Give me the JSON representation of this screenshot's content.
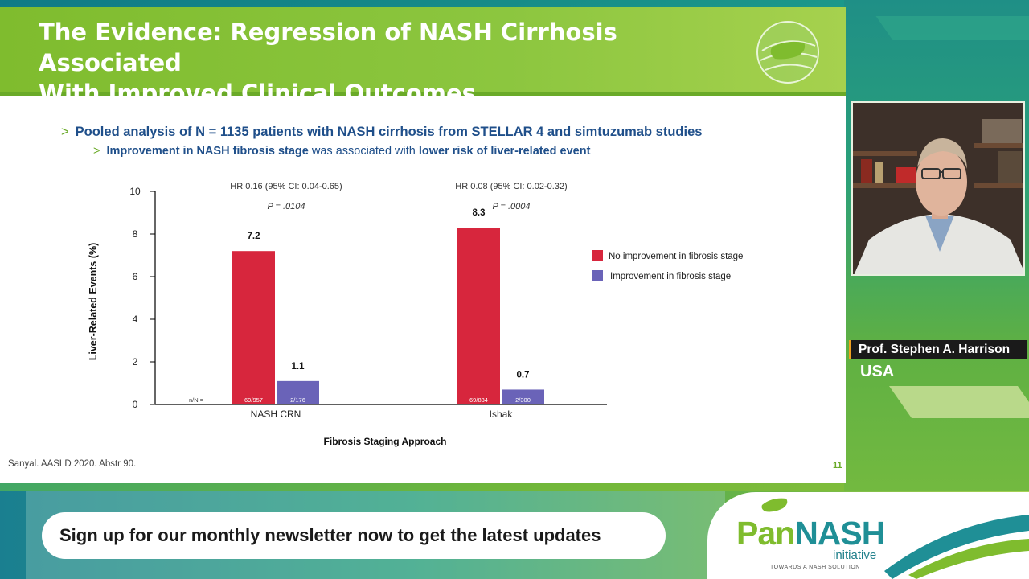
{
  "slide": {
    "title_line1": "The Evidence: Regression of NASH Cirrhosis Associated",
    "title_line2": "With Improved Clinical Outcomes",
    "bullet1_mark": ">",
    "bullet1": "Pooled analysis of N = 1135 patients with NASH cirrhosis from STELLAR 4 and simtuzumab studies",
    "bullet2_mark": ">",
    "bullet2_part1": "Improvement in NASH fibrosis stage",
    "bullet2_part2": " was associated with ",
    "bullet2_part3": "lower risk of liver-related event",
    "citation": "Sanyal. AASLD 2020. Abstr 90.",
    "slide_number": "11"
  },
  "chart_data": {
    "type": "bar",
    "title": "",
    "xlabel": "Fibrosis Staging Approach",
    "ylabel": "Liver-Related Events (%)",
    "ylim": [
      0,
      10
    ],
    "yticks": [
      "0",
      "2",
      "4",
      "6",
      "8",
      "10"
    ],
    "categories": [
      "NASH CRN",
      "Ishak"
    ],
    "series": [
      {
        "name": "No improvement in fibrosis stage",
        "color": "#d7263d",
        "values": [
          7.2,
          8.3
        ],
        "labels": [
          "7.2",
          "8.3"
        ],
        "n": [
          "69/957",
          "69/834"
        ]
      },
      {
        "name": "Improvement in fibrosis stage",
        "color": "#6a63b8",
        "values": [
          1.1,
          0.7
        ],
        "labels": [
          "1.1",
          "0.7"
        ],
        "n": [
          "2/176",
          "2/300"
        ]
      }
    ],
    "hr_labels": [
      "HR 0.16 (95% CI: 0.04-0.65)",
      "HR 0.08 (95% CI: 0.02-0.32)"
    ],
    "p_labels": [
      "P = .0104",
      "P = .0004"
    ],
    "n_prefix": "n/N =",
    "legend_position": "right"
  },
  "speaker": {
    "name": "Prof. Stephen A. Harrison",
    "country": "USA"
  },
  "banner": {
    "newsletter": "Sign up for our monthly newsletter now to get the latest updates"
  },
  "brand": {
    "pan": "Pan",
    "nash": "NASH",
    "initiative": "initiative",
    "tagline": "TOWARDS A NASH SOLUTION"
  }
}
